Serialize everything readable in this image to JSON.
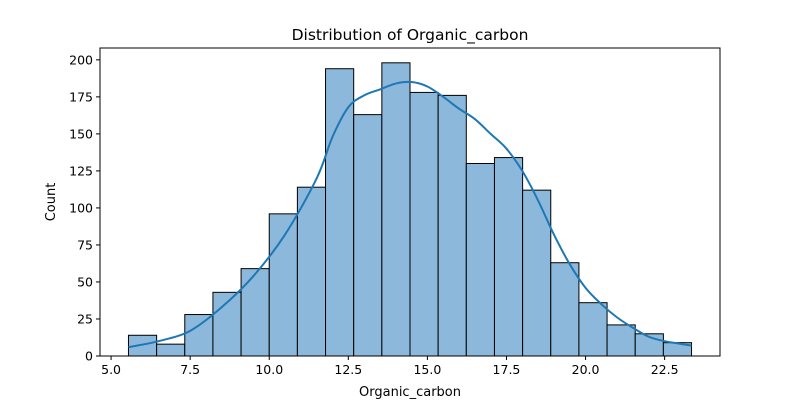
{
  "chart_data": {
    "type": "bar",
    "title": "Distribution of Organic_carbon",
    "xlabel": "Organic_carbon",
    "ylabel": "Count",
    "xlim": [
      4.65,
      24.25
    ],
    "ylim": [
      0,
      208
    ],
    "xticks": [
      5.0,
      7.5,
      10.0,
      12.5,
      15.0,
      17.5,
      20.0,
      22.5
    ],
    "xtick_labels": [
      "5.0",
      "7.5",
      "10.0",
      "12.5",
      "15.0",
      "17.5",
      "20.0",
      "22.5"
    ],
    "yticks": [
      0,
      25,
      50,
      75,
      100,
      125,
      150,
      175,
      200
    ],
    "ytick_labels": [
      "0",
      "25",
      "50",
      "75",
      "100",
      "125",
      "150",
      "175",
      "200"
    ],
    "bin_edges": [
      5.55,
      6.44,
      7.33,
      8.22,
      9.11,
      10.0,
      10.89,
      11.78,
      12.67,
      13.56,
      14.45,
      15.34,
      16.23,
      17.12,
      18.01,
      18.9,
      19.79,
      20.68,
      21.57,
      22.46,
      23.35
    ],
    "counts": [
      14,
      8,
      28,
      43,
      59,
      96,
      114,
      194,
      163,
      198,
      178,
      176,
      130,
      134,
      112,
      63,
      36,
      21,
      15,
      9
    ],
    "kde": {
      "x": [
        5.55,
        6.5,
        7.5,
        8.5,
        9.5,
        10.5,
        11.5,
        12.0,
        12.5,
        13.0,
        13.5,
        14.0,
        14.5,
        15.0,
        15.5,
        16.0,
        16.5,
        17.0,
        17.5,
        18.0,
        18.5,
        19.0,
        19.5,
        20.0,
        20.5,
        21.0,
        21.5,
        22.0,
        22.5,
        23.35
      ],
      "y": [
        6,
        10,
        17,
        33,
        54,
        82,
        120,
        148,
        168,
        176,
        180,
        184,
        185,
        182,
        175,
        167,
        160,
        150,
        140,
        125,
        105,
        82,
        62,
        46,
        35,
        26,
        19,
        13,
        10,
        7
      ]
    },
    "bar_color": "#8cb9db",
    "bar_edge_color": "#000000",
    "kde_color": "#1f77b4",
    "grid": false,
    "legend": "none"
  }
}
